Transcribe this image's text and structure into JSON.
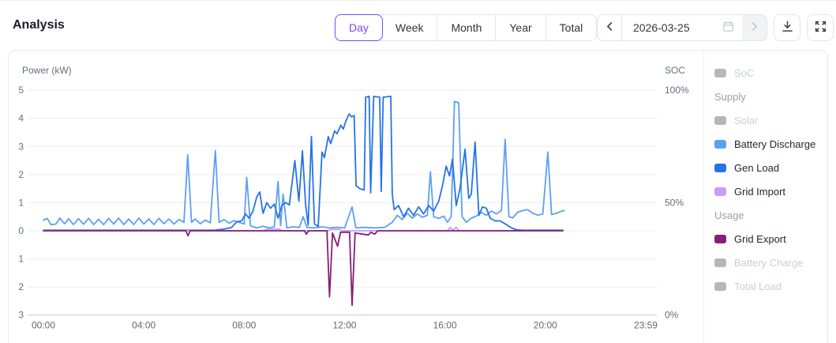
{
  "header": {
    "title": "Analysis",
    "tabs": [
      {
        "label": "Day",
        "active": true
      },
      {
        "label": "Week",
        "active": false
      },
      {
        "label": "Month",
        "active": false
      },
      {
        "label": "Year",
        "active": false
      },
      {
        "label": "Total",
        "active": false
      }
    ],
    "date_picker": {
      "value": "2026-03-25"
    },
    "icons": {
      "prev": "chevron-left",
      "next": "chevron-right",
      "calendar": "calendar",
      "download": "download",
      "fullscreen": "fullscreen"
    },
    "accent_color": "#7c4af0"
  },
  "legend": {
    "items": [
      {
        "kind": "item",
        "label": "SoC",
        "color": "#b3b8bf",
        "disabled": true
      },
      {
        "kind": "header",
        "label": "Supply"
      },
      {
        "kind": "item",
        "label": "Solar",
        "color": "#b3b8bf",
        "disabled": true
      },
      {
        "kind": "item",
        "label": "Battery Discharge",
        "color": "#5ca0f2",
        "disabled": false
      },
      {
        "kind": "item",
        "label": "Gen Load",
        "color": "#2673e8",
        "disabled": false
      },
      {
        "kind": "item",
        "label": "Grid Import",
        "color": "#c79df5",
        "disabled": false
      },
      {
        "kind": "header",
        "label": "Usage"
      },
      {
        "kind": "item",
        "label": "Grid Export",
        "color": "#871d79",
        "disabled": false
      },
      {
        "kind": "item",
        "label": "Battery Charge",
        "color": "#b3b8bf",
        "disabled": true
      },
      {
        "kind": "item",
        "label": "Total Load",
        "color": "#b3b8bf",
        "disabled": true
      }
    ]
  },
  "chart_data": {
    "type": "line",
    "title_left": "Power (kW)",
    "title_right": "SOC",
    "xlim": [
      0,
      24
    ],
    "ylim": [
      -3,
      5
    ],
    "grid": true,
    "legend_position": "right",
    "x_ticks": [
      {
        "t": 0,
        "label": "00:00"
      },
      {
        "t": 4,
        "label": "04:00"
      },
      {
        "t": 8,
        "label": "08:00"
      },
      {
        "t": 12,
        "label": "12:00"
      },
      {
        "t": 16,
        "label": "16:00"
      },
      {
        "t": 20,
        "label": "20:00"
      },
      {
        "t": 24,
        "label": "23:59"
      }
    ],
    "y_ticks": [
      {
        "v": 5,
        "label": "5"
      },
      {
        "v": 4,
        "label": "4"
      },
      {
        "v": 3,
        "label": "3"
      },
      {
        "v": 2,
        "label": "2"
      },
      {
        "v": 1,
        "label": "1"
      },
      {
        "v": 0,
        "label": "0"
      },
      {
        "v": -1,
        "label": "1"
      },
      {
        "v": -2,
        "label": "2"
      },
      {
        "v": -3,
        "label": "3"
      }
    ],
    "soc_ticks": [
      {
        "v": 5,
        "label": "100%"
      },
      {
        "v": 1,
        "label": "50%"
      },
      {
        "v": -3,
        "label": "0%"
      }
    ],
    "series": [
      {
        "name": "Battery Discharge",
        "color": "#5ca0f2",
        "points": [
          [
            0,
            0.38
          ],
          [
            0.15,
            0.44
          ],
          [
            0.3,
            0.22
          ],
          [
            0.5,
            0.24
          ],
          [
            0.65,
            0.45
          ],
          [
            0.85,
            0.25
          ],
          [
            1,
            0.43
          ],
          [
            1.2,
            0.22
          ],
          [
            1.4,
            0.43
          ],
          [
            1.6,
            0.23
          ],
          [
            1.8,
            0.44
          ],
          [
            2,
            0.22
          ],
          [
            2.2,
            0.41
          ],
          [
            2.4,
            0.22
          ],
          [
            2.6,
            0.44
          ],
          [
            2.8,
            0.24
          ],
          [
            3,
            0.45
          ],
          [
            3.2,
            0.22
          ],
          [
            3.4,
            0.42
          ],
          [
            3.6,
            0.22
          ],
          [
            3.8,
            0.45
          ],
          [
            4,
            0.24
          ],
          [
            4.2,
            0.42
          ],
          [
            4.4,
            0.22
          ],
          [
            4.6,
            0.44
          ],
          [
            4.8,
            0.25
          ],
          [
            5,
            0.42
          ],
          [
            5.2,
            0.24
          ],
          [
            5.4,
            0.4
          ],
          [
            5.6,
            0.3
          ],
          [
            5.75,
            2.7
          ],
          [
            5.9,
            0.3
          ],
          [
            6.05,
            0.42
          ],
          [
            6.25,
            0.25
          ],
          [
            6.45,
            0.38
          ],
          [
            6.65,
            0.28
          ],
          [
            6.85,
            2.85
          ],
          [
            7,
            0.3
          ],
          [
            7.2,
            0.4
          ],
          [
            7.4,
            0.27
          ],
          [
            7.6,
            0.36
          ],
          [
            7.8,
            0.3
          ],
          [
            8,
            0.24
          ],
          [
            8.1,
            1.9
          ],
          [
            8.25,
            0.18
          ],
          [
            8.5,
            0.1
          ],
          [
            8.75,
            0.16
          ],
          [
            9,
            0.1
          ],
          [
            9.2,
            0.14
          ],
          [
            9.35,
            1.75
          ],
          [
            9.45,
            0.18
          ],
          [
            9.55,
            1.3
          ],
          [
            9.7,
            0.1
          ],
          [
            9.95,
            0.14
          ],
          [
            10.2,
            0.12
          ],
          [
            10.35,
            0.5
          ],
          [
            10.5,
            0.12
          ],
          [
            10.8,
            0.1
          ],
          [
            11.1,
            0.14
          ],
          [
            11.4,
            0.1
          ],
          [
            11.7,
            0.12
          ],
          [
            12,
            0.1
          ],
          [
            12.3,
            0.85
          ],
          [
            12.45,
            0.1
          ],
          [
            12.8,
            0.12
          ],
          [
            13.2,
            0.1
          ],
          [
            13.6,
            0.12
          ],
          [
            13.9,
            0.3
          ],
          [
            14.1,
            0.55
          ],
          [
            14.3,
            0.4
          ],
          [
            14.5,
            0.62
          ],
          [
            14.7,
            0.45
          ],
          [
            14.9,
            0.6
          ],
          [
            15.1,
            0.48
          ],
          [
            15.3,
            0.55
          ],
          [
            15.42,
            2.1
          ],
          [
            15.55,
            0.5
          ],
          [
            15.75,
            0.44
          ],
          [
            15.95,
            0.52
          ],
          [
            16.1,
            0.3
          ],
          [
            16.25,
            0.5
          ],
          [
            16.38,
            4.6
          ],
          [
            16.55,
            4.55
          ],
          [
            16.68,
            0.5
          ],
          [
            16.85,
            0.3
          ],
          [
            17.05,
            0.45
          ],
          [
            17.25,
            0.52
          ],
          [
            17.45,
            0.65
          ],
          [
            17.65,
            0.55
          ],
          [
            17.85,
            0.7
          ],
          [
            18.05,
            0.6
          ],
          [
            18.25,
            0.72
          ],
          [
            18.4,
            3.25
          ],
          [
            18.55,
            0.5
          ],
          [
            18.7,
            0.46
          ],
          [
            18.9,
            0.66
          ],
          [
            19.1,
            0.72
          ],
          [
            19.3,
            0.75
          ],
          [
            19.5,
            0.62
          ],
          [
            19.7,
            0.56
          ],
          [
            19.9,
            0.6
          ],
          [
            20.1,
            2.8
          ],
          [
            20.25,
            0.58
          ],
          [
            20.45,
            0.62
          ],
          [
            20.6,
            0.68
          ],
          [
            20.75,
            0.72
          ]
        ]
      },
      {
        "name": "Gen Load",
        "color": "#2673e8",
        "points": [
          [
            0,
            0.02
          ],
          [
            6.8,
            0.02
          ],
          [
            7.2,
            0.06
          ],
          [
            7.5,
            0.12
          ],
          [
            7.7,
            0.32
          ],
          [
            7.9,
            0.35
          ],
          [
            8.05,
            0.6
          ],
          [
            8.2,
            0.45
          ],
          [
            8.35,
            0.7
          ],
          [
            8.5,
            1.2
          ],
          [
            8.62,
            1.38
          ],
          [
            8.75,
            0.62
          ],
          [
            8.9,
            1
          ],
          [
            9.05,
            0.8
          ],
          [
            9.2,
            0.95
          ],
          [
            9.35,
            0.45
          ],
          [
            9.5,
            0.9
          ],
          [
            9.65,
            1
          ],
          [
            9.8,
            0.92
          ],
          [
            10.02,
            2.5
          ],
          [
            10.18,
            1.05
          ],
          [
            10.32,
            2.85
          ],
          [
            10.45,
            0.9
          ],
          [
            10.55,
            0.2
          ],
          [
            10.68,
            3.35
          ],
          [
            10.8,
            0.25
          ],
          [
            10.95,
            0.15
          ],
          [
            11.1,
            2.8
          ],
          [
            11.2,
            2.6
          ],
          [
            11.35,
            3.35
          ],
          [
            11.45,
            3.1
          ],
          [
            11.6,
            3.55
          ],
          [
            11.7,
            3.45
          ],
          [
            11.85,
            3.75
          ],
          [
            11.95,
            3.62
          ],
          [
            12.05,
            3.9
          ],
          [
            12.18,
            4.15
          ],
          [
            12.28,
            4.05
          ],
          [
            12.38,
            4.1
          ],
          [
            12.46,
            1.6
          ],
          [
            12.6,
            1.5
          ],
          [
            12.78,
            1.45
          ],
          [
            12.84,
            4.75
          ],
          [
            12.98,
            4.78
          ],
          [
            13.04,
            1.35
          ],
          [
            13.16,
            4.78
          ],
          [
            13.4,
            4.75
          ],
          [
            13.46,
            1.4
          ],
          [
            13.54,
            4.75
          ],
          [
            13.84,
            4.78
          ],
          [
            13.9,
            1.3
          ],
          [
            13.98,
            0.75
          ],
          [
            14.15,
            0.9
          ],
          [
            14.35,
            0.5
          ],
          [
            14.55,
            0.8
          ],
          [
            14.75,
            0.55
          ],
          [
            14.95,
            0.85
          ],
          [
            15.15,
            0.6
          ],
          [
            15.35,
            0.9
          ],
          [
            15.55,
            0.7
          ],
          [
            15.75,
            1.05
          ],
          [
            15.9,
            1.6
          ],
          [
            16.05,
            2.3
          ],
          [
            16.18,
            1.95
          ],
          [
            16.3,
            2.55
          ],
          [
            16.45,
            0.9
          ],
          [
            16.6,
            1.5
          ],
          [
            16.8,
            2.9
          ],
          [
            16.95,
            1.15
          ],
          [
            17.05,
            1.3
          ],
          [
            17.2,
            3.15
          ],
          [
            17.35,
            0.55
          ],
          [
            17.5,
            0.85
          ],
          [
            17.65,
            0.8
          ],
          [
            17.8,
            0.45
          ],
          [
            18,
            0.35
          ],
          [
            18.2,
            0.35
          ],
          [
            18.45,
            0.22
          ],
          [
            18.65,
            0.1
          ],
          [
            18.85,
            0.04
          ],
          [
            19.1,
            0.02
          ],
          [
            20.7,
            0.02
          ]
        ]
      },
      {
        "name": "Grid Import",
        "color": "#c79df5",
        "points": [
          [
            0,
            0
          ],
          [
            8.8,
            0
          ],
          [
            8.9,
            0.06
          ],
          [
            9.4,
            0.06
          ],
          [
            9.5,
            0
          ],
          [
            11.35,
            0
          ],
          [
            11.45,
            0.05
          ],
          [
            11.8,
            0.05
          ],
          [
            11.9,
            0
          ],
          [
            16.1,
            0
          ],
          [
            16.2,
            0.12
          ],
          [
            16.32,
            0.03
          ],
          [
            16.45,
            0.12
          ],
          [
            16.55,
            0
          ],
          [
            20.7,
            0
          ]
        ]
      },
      {
        "name": "Grid Export",
        "color": "#871d79",
        "points": [
          [
            0,
            0
          ],
          [
            5.68,
            0
          ],
          [
            5.76,
            -0.18
          ],
          [
            5.85,
            0
          ],
          [
            10.4,
            0
          ],
          [
            10.48,
            -0.12
          ],
          [
            10.56,
            0
          ],
          [
            11.3,
            0
          ],
          [
            11.4,
            -2.35
          ],
          [
            11.52,
            -0.08
          ],
          [
            11.72,
            -0.55
          ],
          [
            11.84,
            -0.05
          ],
          [
            12.2,
            -0.05
          ],
          [
            12.3,
            -2.65
          ],
          [
            12.42,
            -0.08
          ],
          [
            12.95,
            -0.15
          ],
          [
            13.05,
            -0.05
          ],
          [
            13.2,
            -0.12
          ],
          [
            13.32,
            0
          ],
          [
            20.7,
            0
          ]
        ]
      }
    ]
  }
}
